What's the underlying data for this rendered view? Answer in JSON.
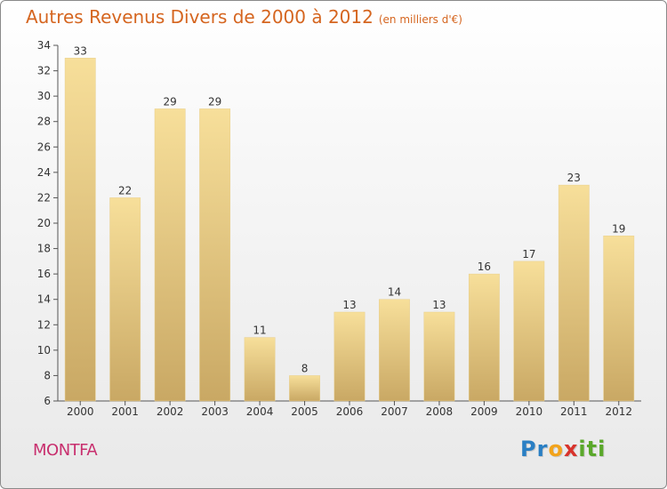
{
  "title": {
    "main": "Autres Revenus Divers de 2000 à 2012",
    "unit": "(en milliers d'€)"
  },
  "location": "MONTFA",
  "logo": {
    "letters": [
      "P",
      "r",
      "o",
      "x",
      "i",
      "t",
      "i"
    ],
    "colors": [
      "#2a7fc4",
      "#2a7fc4",
      "#f2a31b",
      "#d8332c",
      "#5aa82a",
      "#5aa82a",
      "#5aa82a"
    ]
  },
  "colors": {
    "bar_light": "#f7df9a",
    "bar_dark": "#c9a864",
    "title": "#d5651f",
    "location": "#c82f6e",
    "axis": "#555555"
  },
  "chart_data": {
    "type": "bar",
    "categories": [
      "2000",
      "2001",
      "2002",
      "2003",
      "2004",
      "2005",
      "2006",
      "2007",
      "2008",
      "2009",
      "2010",
      "2011",
      "2012"
    ],
    "values": [
      33,
      22,
      29,
      29,
      11,
      8,
      13,
      14,
      13,
      16,
      17,
      23,
      19
    ],
    "data_labels": [
      "33",
      "22",
      "29",
      "29",
      "11",
      "8",
      "13",
      "14",
      "13",
      "16",
      "17",
      "23",
      "19"
    ],
    "yticks": [
      "6",
      "8",
      "10",
      "12",
      "14",
      "16",
      "18",
      "20",
      "22",
      "24",
      "26",
      "28",
      "30",
      "32",
      "34"
    ],
    "ylim": [
      6,
      34
    ],
    "title": "Autres Revenus Divers de 2000 à 2012",
    "xlabel": "",
    "ylabel": "",
    "grid": false,
    "legend": "none"
  }
}
